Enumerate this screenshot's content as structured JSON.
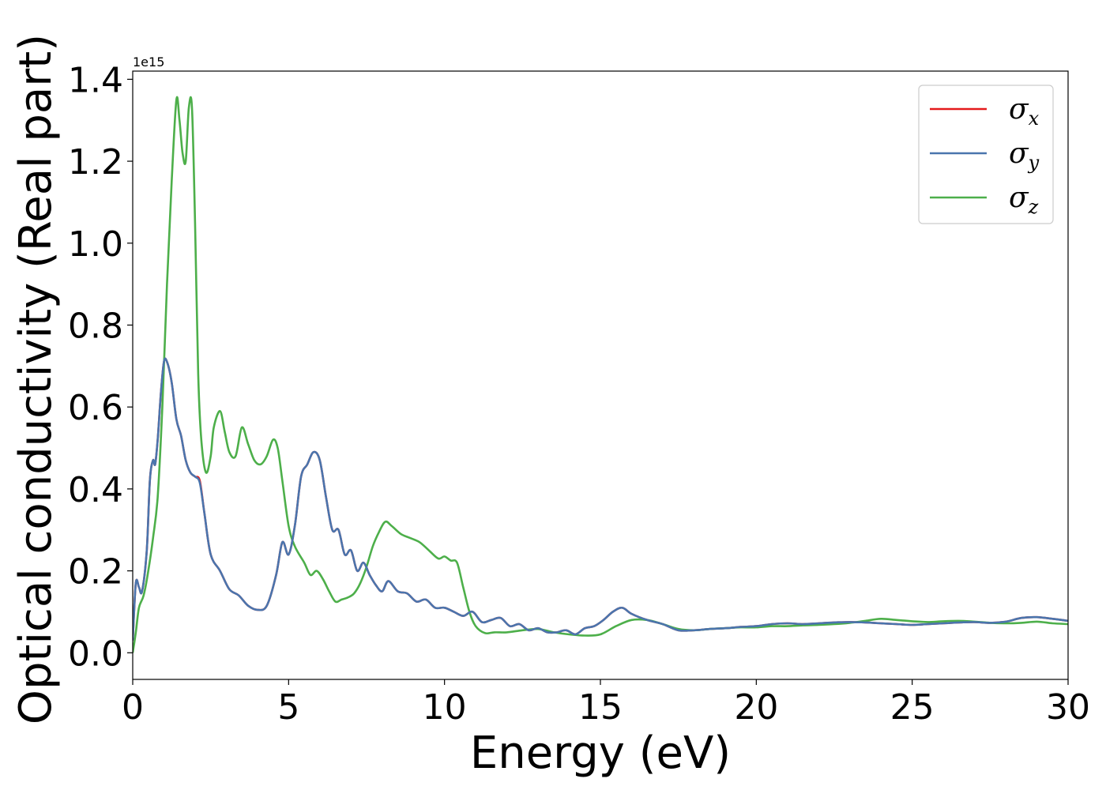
{
  "chart_data": {
    "type": "line",
    "title": "",
    "xlabel": "Energy (eV)",
    "ylabel": "Optical conductivity (Real part)",
    "y_offset_text": "1e15",
    "y_scale": 1000000000000000.0,
    "xlim": [
      0,
      30
    ],
    "ylim": [
      -0.065,
      1.42
    ],
    "xticks": [
      0,
      5,
      10,
      15,
      20,
      25,
      30
    ],
    "xtick_labels": [
      "0",
      "5",
      "10",
      "15",
      "20",
      "25",
      "30"
    ],
    "yticks": [
      0.0,
      0.2,
      0.4,
      0.6,
      0.8,
      1.0,
      1.2,
      1.4
    ],
    "ytick_labels": [
      "0.0",
      "0.2",
      "0.4",
      "0.6",
      "0.8",
      "1.0",
      "1.2",
      "1.4"
    ],
    "grid": false,
    "legend_position": "top-right",
    "series": [
      {
        "name": "σx",
        "symbol": "σ",
        "subscript": "x",
        "color": "#e41a1c",
        "x": [
          0,
          0.1,
          0.2,
          0.3,
          0.45,
          0.55,
          0.65,
          0.72,
          0.8,
          0.9,
          1.0,
          1.1,
          1.25,
          1.4,
          1.55,
          1.7,
          1.85,
          2.0,
          2.15,
          2.3,
          2.5,
          2.8,
          3.1,
          3.4,
          3.7,
          4.0,
          4.3,
          4.6,
          4.8,
          5.0,
          5.2,
          5.4,
          5.6,
          5.8,
          6.0,
          6.2,
          6.4,
          6.6,
          6.8,
          7.0,
          7.2,
          7.4,
          7.6,
          7.8,
          8.0,
          8.2,
          8.5,
          8.8,
          9.1,
          9.4,
          9.7,
          10.0,
          10.3,
          10.6,
          10.9,
          11.2,
          11.5,
          11.8,
          12.1,
          12.4,
          12.7,
          13.0,
          13.3,
          13.6,
          13.9,
          14.2,
          14.5,
          14.8,
          15.1,
          15.4,
          15.7,
          16.0,
          16.5,
          17.0,
          17.5,
          18.0,
          18.5,
          19.0,
          19.5,
          20.0,
          20.5,
          21.0,
          21.5,
          22.0,
          22.5,
          23.0,
          23.5,
          24.0,
          24.5,
          25.0,
          25.5,
          26.0,
          26.5,
          27.0,
          27.5,
          28.0,
          28.5,
          29.0,
          29.5,
          30.0
        ],
        "values": [
          0.03,
          0.17,
          0.16,
          0.15,
          0.25,
          0.42,
          0.47,
          0.46,
          0.52,
          0.63,
          0.71,
          0.71,
          0.66,
          0.57,
          0.53,
          0.47,
          0.44,
          0.43,
          0.42,
          0.34,
          0.24,
          0.2,
          0.155,
          0.14,
          0.115,
          0.105,
          0.115,
          0.19,
          0.27,
          0.24,
          0.31,
          0.43,
          0.46,
          0.49,
          0.47,
          0.38,
          0.3,
          0.3,
          0.24,
          0.25,
          0.2,
          0.22,
          0.19,
          0.165,
          0.15,
          0.175,
          0.15,
          0.145,
          0.125,
          0.13,
          0.11,
          0.11,
          0.1,
          0.09,
          0.1,
          0.075,
          0.08,
          0.085,
          0.065,
          0.07,
          0.055,
          0.06,
          0.05,
          0.05,
          0.055,
          0.045,
          0.06,
          0.065,
          0.08,
          0.1,
          0.11,
          0.095,
          0.08,
          0.07,
          0.055,
          0.055,
          0.058,
          0.06,
          0.063,
          0.065,
          0.07,
          0.072,
          0.07,
          0.072,
          0.074,
          0.075,
          0.074,
          0.072,
          0.07,
          0.068,
          0.07,
          0.072,
          0.074,
          0.075,
          0.073,
          0.076,
          0.085,
          0.087,
          0.083,
          0.078
        ]
      },
      {
        "name": "σy",
        "symbol": "σ",
        "subscript": "y",
        "color": "#4a75ad",
        "x": [
          0,
          0.1,
          0.2,
          0.3,
          0.45,
          0.55,
          0.65,
          0.72,
          0.8,
          0.9,
          1.0,
          1.1,
          1.25,
          1.4,
          1.55,
          1.7,
          1.85,
          2.0,
          2.15,
          2.3,
          2.5,
          2.8,
          3.1,
          3.4,
          3.7,
          4.0,
          4.3,
          4.6,
          4.8,
          5.0,
          5.2,
          5.4,
          5.6,
          5.8,
          6.0,
          6.2,
          6.4,
          6.6,
          6.8,
          7.0,
          7.2,
          7.4,
          7.6,
          7.8,
          8.0,
          8.2,
          8.5,
          8.8,
          9.1,
          9.4,
          9.7,
          10.0,
          10.3,
          10.6,
          10.9,
          11.2,
          11.5,
          11.8,
          12.1,
          12.4,
          12.7,
          13.0,
          13.3,
          13.6,
          13.9,
          14.2,
          14.5,
          14.8,
          15.1,
          15.4,
          15.7,
          16.0,
          16.5,
          17.0,
          17.5,
          18.0,
          18.5,
          19.0,
          19.5,
          20.0,
          20.5,
          21.0,
          21.5,
          22.0,
          22.5,
          23.0,
          23.5,
          24.0,
          24.5,
          25.0,
          25.5,
          26.0,
          26.5,
          27.0,
          27.5,
          28.0,
          28.5,
          29.0,
          29.5,
          30.0
        ],
        "values": [
          0.03,
          0.17,
          0.16,
          0.15,
          0.25,
          0.42,
          0.47,
          0.46,
          0.52,
          0.63,
          0.71,
          0.71,
          0.66,
          0.57,
          0.53,
          0.47,
          0.44,
          0.43,
          0.415,
          0.34,
          0.24,
          0.2,
          0.155,
          0.14,
          0.115,
          0.105,
          0.115,
          0.19,
          0.27,
          0.24,
          0.31,
          0.43,
          0.46,
          0.49,
          0.47,
          0.38,
          0.3,
          0.3,
          0.24,
          0.25,
          0.2,
          0.22,
          0.19,
          0.165,
          0.15,
          0.175,
          0.15,
          0.145,
          0.125,
          0.13,
          0.11,
          0.11,
          0.1,
          0.09,
          0.1,
          0.075,
          0.08,
          0.085,
          0.065,
          0.07,
          0.055,
          0.06,
          0.05,
          0.05,
          0.055,
          0.045,
          0.06,
          0.065,
          0.08,
          0.1,
          0.11,
          0.095,
          0.08,
          0.07,
          0.055,
          0.055,
          0.058,
          0.06,
          0.063,
          0.065,
          0.07,
          0.072,
          0.07,
          0.072,
          0.074,
          0.075,
          0.074,
          0.072,
          0.07,
          0.068,
          0.07,
          0.072,
          0.074,
          0.075,
          0.073,
          0.076,
          0.085,
          0.087,
          0.083,
          0.078
        ]
      },
      {
        "name": "σz",
        "symbol": "σ",
        "subscript": "z",
        "color": "#4daf4a",
        "x": [
          0,
          0.1,
          0.2,
          0.35,
          0.5,
          0.65,
          0.8,
          0.95,
          1.1,
          1.25,
          1.4,
          1.5,
          1.6,
          1.7,
          1.8,
          1.9,
          2.0,
          2.1,
          2.2,
          2.35,
          2.5,
          2.6,
          2.8,
          2.95,
          3.1,
          3.3,
          3.5,
          3.7,
          3.9,
          4.1,
          4.3,
          4.5,
          4.65,
          4.8,
          5.0,
          5.2,
          5.5,
          5.7,
          5.9,
          6.1,
          6.3,
          6.5,
          6.7,
          6.9,
          7.1,
          7.3,
          7.5,
          7.7,
          7.9,
          8.1,
          8.3,
          8.6,
          8.9,
          9.2,
          9.5,
          9.8,
          10.0,
          10.2,
          10.4,
          10.6,
          10.8,
          11.0,
          11.3,
          11.6,
          12.0,
          12.5,
          13.0,
          13.5,
          14.0,
          14.5,
          15.0,
          15.5,
          16.0,
          16.5,
          17.0,
          17.5,
          18.0,
          18.5,
          19.0,
          19.5,
          20.0,
          20.5,
          21.0,
          21.5,
          22.0,
          22.5,
          23.0,
          23.5,
          24.0,
          24.5,
          25.0,
          25.5,
          26.0,
          26.5,
          27.0,
          27.5,
          28.0,
          28.5,
          29.0,
          29.5,
          30.0
        ],
        "values": [
          0.0,
          0.05,
          0.11,
          0.14,
          0.2,
          0.28,
          0.38,
          0.6,
          0.9,
          1.15,
          1.35,
          1.3,
          1.22,
          1.2,
          1.33,
          1.33,
          1.05,
          0.68,
          0.52,
          0.44,
          0.48,
          0.55,
          0.59,
          0.54,
          0.49,
          0.48,
          0.55,
          0.51,
          0.47,
          0.46,
          0.48,
          0.52,
          0.5,
          0.42,
          0.31,
          0.26,
          0.22,
          0.19,
          0.2,
          0.18,
          0.15,
          0.125,
          0.13,
          0.135,
          0.145,
          0.17,
          0.21,
          0.26,
          0.295,
          0.32,
          0.31,
          0.29,
          0.28,
          0.27,
          0.25,
          0.23,
          0.235,
          0.225,
          0.22,
          0.16,
          0.1,
          0.065,
          0.048,
          0.05,
          0.05,
          0.055,
          0.058,
          0.05,
          0.045,
          0.042,
          0.045,
          0.065,
          0.08,
          0.08,
          0.07,
          0.058,
          0.055,
          0.058,
          0.06,
          0.062,
          0.062,
          0.065,
          0.065,
          0.067,
          0.068,
          0.07,
          0.073,
          0.078,
          0.083,
          0.08,
          0.077,
          0.075,
          0.077,
          0.078,
          0.076,
          0.073,
          0.072,
          0.073,
          0.076,
          0.072,
          0.07
        ]
      }
    ]
  }
}
